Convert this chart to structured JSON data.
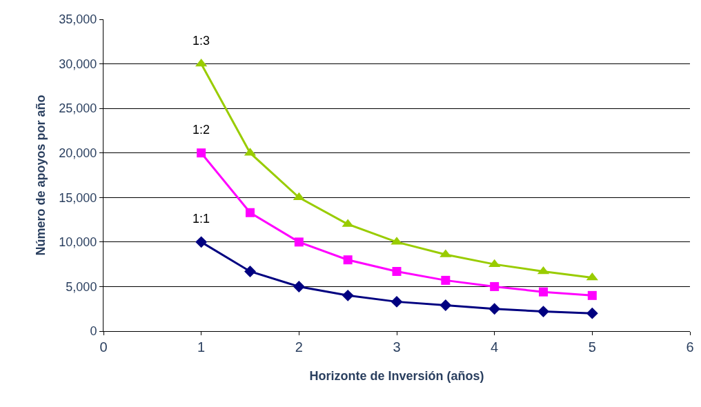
{
  "chart_data": {
    "type": "line",
    "xlabel": "Horizonte de Inversión (años)",
    "ylabel": "Número de apoyos por año",
    "x": [
      1,
      1.5,
      2,
      2.5,
      3,
      3.5,
      4,
      4.5,
      5
    ],
    "series": [
      {
        "name": "1:1",
        "color": "#000080",
        "marker": "diamond",
        "values": [
          10000,
          6700,
          5000,
          4000,
          3300,
          2900,
          2500,
          2200,
          2000
        ]
      },
      {
        "name": "1:2",
        "color": "#ff00ff",
        "marker": "square",
        "values": [
          20000,
          13300,
          10000,
          8000,
          6700,
          5700,
          5000,
          4400,
          4000
        ]
      },
      {
        "name": "1:3",
        "color": "#99cc00",
        "marker": "triangle",
        "values": [
          30000,
          20000,
          15000,
          12000,
          10000,
          8600,
          7500,
          6700,
          6000
        ]
      }
    ],
    "xlim": [
      0,
      6
    ],
    "xticks": [
      0,
      1,
      2,
      3,
      4,
      5,
      6
    ],
    "ylim": [
      0,
      35000
    ],
    "yticks": [
      {
        "value": 0,
        "label": "0"
      },
      {
        "value": 5000,
        "label": "5,000"
      },
      {
        "value": 10000,
        "label": "10,000"
      },
      {
        "value": 15000,
        "label": "15,000"
      },
      {
        "value": 20000,
        "label": "20,000"
      },
      {
        "value": 25000,
        "label": "25,000"
      },
      {
        "value": 30000,
        "label": "30,000"
      },
      {
        "value": 35000,
        "label": "35,000"
      }
    ],
    "grid": "y",
    "legend": false
  }
}
